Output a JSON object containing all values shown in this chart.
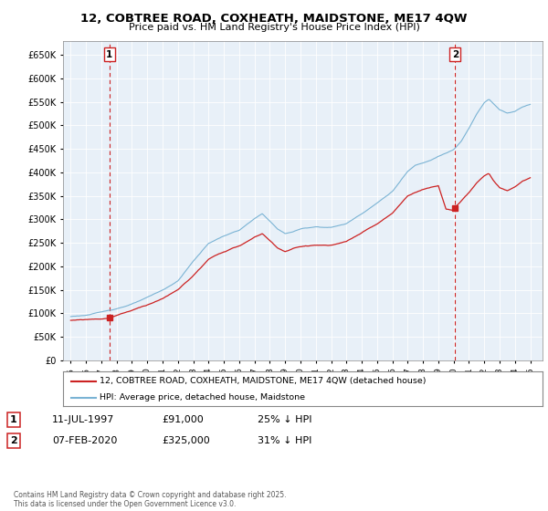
{
  "title": "12, COBTREE ROAD, COXHEATH, MAIDSTONE, ME17 4QW",
  "subtitle": "Price paid vs. HM Land Registry's House Price Index (HPI)",
  "sale1_date": "11-JUL-1997",
  "sale1_price": 91000,
  "sale1_label": "25% ↓ HPI",
  "sale1_year": 1997.53,
  "sale2_date": "07-FEB-2020",
  "sale2_price": 325000,
  "sale2_label": "31% ↓ HPI",
  "sale2_year": 2020.1,
  "legend_label1": "12, COBTREE ROAD, COXHEATH, MAIDSTONE, ME17 4QW (detached house)",
  "legend_label2": "HPI: Average price, detached house, Maidstone",
  "footer": "Contains HM Land Registry data © Crown copyright and database right 2025.\nThis data is licensed under the Open Government Licence v3.0.",
  "hpi_color": "#7ab3d4",
  "price_color": "#cc2222",
  "vline_color": "#cc2222",
  "background_color": "#ffffff",
  "plot_bg_color": "#e8f0f8",
  "grid_color": "#ffffff",
  "ylim_min": 0,
  "ylim_max": 680000,
  "ytick_step": 50000,
  "xmin": 1994.5,
  "xmax": 2025.8
}
